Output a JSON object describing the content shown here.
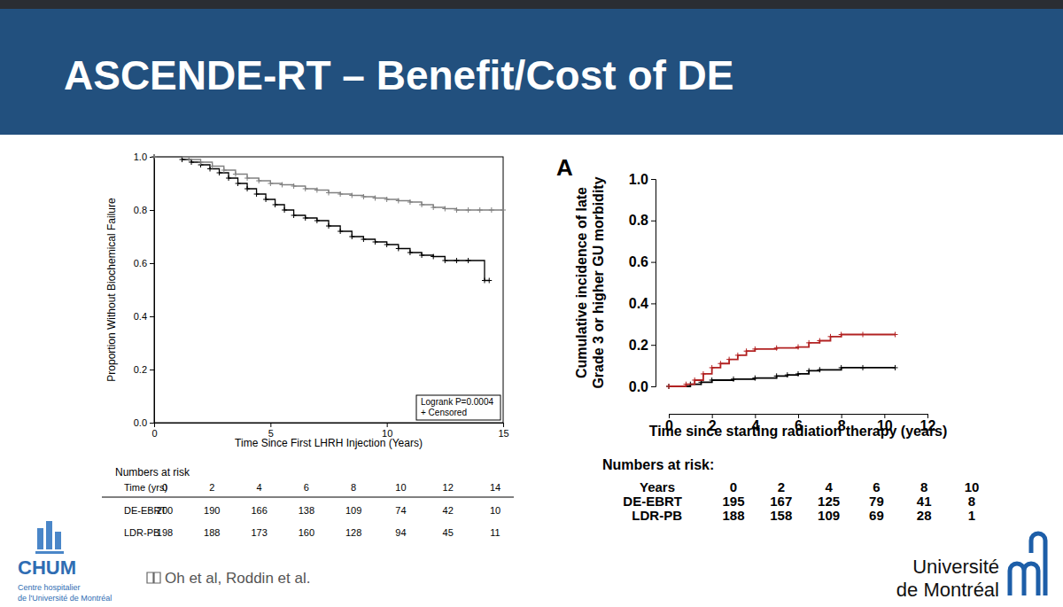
{
  "slide": {
    "title": "ASCENDE-RT – Benefit/Cost of DE",
    "citation": "Oh et al, Roddin et al.",
    "left_logo": {
      "name": "CHUM",
      "caption": [
        "Centre hospitalier",
        "de l'Université de Montréal"
      ]
    },
    "right_logo": [
      "Université",
      "de Montréal"
    ]
  },
  "chart_data": [
    {
      "type": "step",
      "xlabel": "Time Since First LHRH Injection (Years)",
      "ylabel": "Proportion Without Biochemical Failure",
      "xlim": [
        0,
        15
      ],
      "xticks": [
        0,
        5,
        10,
        15
      ],
      "ylim": [
        0,
        1
      ],
      "yticks": [
        {
          "value": 0,
          "label": "0.0"
        },
        {
          "value": 0.2,
          "label": "0.2"
        },
        {
          "value": 0.4,
          "label": "0.4"
        },
        {
          "value": 0.6,
          "label": "0.6"
        },
        {
          "value": 0.8,
          "label": "0.8"
        },
        {
          "value": 1,
          "label": "1.0"
        }
      ],
      "annotations": [
        "Logrank P=0.0004",
        "+ Censored"
      ],
      "at_risk_title": "Numbers at risk",
      "at_risk_header": "Time (yrs)",
      "at_risk_times": [
        0,
        2,
        4,
        6,
        8,
        10,
        12,
        14
      ],
      "series": [
        {
          "name": "DE-EBRT",
          "color": "#000000",
          "line_style": "solid",
          "marker": "plus",
          "x": [
            0,
            1.2,
            1.6,
            2,
            2.4,
            2.8,
            3.2,
            3.6,
            4,
            4.4,
            4.8,
            5.2,
            5.6,
            6,
            6.5,
            7,
            7.5,
            8,
            8.5,
            9,
            9.5,
            10,
            10.5,
            11,
            11.5,
            12,
            12.5,
            13,
            13.5,
            14.2,
            14.4
          ],
          "values": [
            1,
            0.99,
            0.98,
            0.97,
            0.955,
            0.94,
            0.92,
            0.9,
            0.88,
            0.86,
            0.84,
            0.82,
            0.8,
            0.78,
            0.77,
            0.76,
            0.74,
            0.72,
            0.7,
            0.69,
            0.68,
            0.67,
            0.655,
            0.64,
            0.63,
            0.625,
            0.61,
            0.61,
            0.61,
            0.535,
            0.535
          ],
          "at_risk": [
            200,
            190,
            166,
            138,
            109,
            74,
            42,
            10
          ]
        },
        {
          "name": "LDR-PB",
          "color": "#808080",
          "line_style": "solid",
          "marker": "plus",
          "x": [
            0,
            1.5,
            2,
            2.5,
            3,
            3.5,
            4,
            4.5,
            5,
            5.5,
            6,
            6.5,
            7,
            7.5,
            8,
            8.5,
            9,
            9.5,
            10,
            10.5,
            11,
            11.5,
            12,
            12.5,
            13,
            13.5,
            14,
            14.5,
            15
          ],
          "values": [
            1,
            0.99,
            0.98,
            0.965,
            0.95,
            0.935,
            0.92,
            0.91,
            0.9,
            0.895,
            0.89,
            0.88,
            0.875,
            0.865,
            0.86,
            0.855,
            0.85,
            0.845,
            0.84,
            0.835,
            0.83,
            0.82,
            0.81,
            0.805,
            0.8,
            0.8,
            0.8,
            0.8,
            0.8
          ],
          "at_risk": [
            198,
            188,
            173,
            160,
            128,
            94,
            45,
            11
          ]
        }
      ]
    },
    {
      "type": "step",
      "title": "A",
      "xlabel": "Time since starting radiation therapy (years)",
      "ylabel": "Cumulative incidence of late\nGrade 3 or higher GU morbidity",
      "xlim": [
        0,
        12
      ],
      "xticks": [
        0,
        2,
        4,
        6,
        8,
        10,
        12
      ],
      "ylim": [
        0,
        1
      ],
      "yticks": [
        {
          "value": 0,
          "label": "0.0"
        },
        {
          "value": 0.2,
          "label": "0.2"
        },
        {
          "value": 0.4,
          "label": "0.4"
        },
        {
          "value": 0.6,
          "label": "0.6"
        },
        {
          "value": 0.8,
          "label": "0.8"
        },
        {
          "value": 1,
          "label": "1.0"
        }
      ],
      "at_risk_title": "Numbers at risk:",
      "at_risk_header": "Years",
      "at_risk_times": [
        0,
        2,
        4,
        6,
        8,
        10
      ],
      "series": [
        {
          "name": "DE-EBRT",
          "color": "#000000",
          "line_style": "solid",
          "marker": "plus",
          "x": [
            0,
            1,
            1.5,
            2,
            3,
            4,
            5,
            5.5,
            6,
            6.5,
            7,
            8,
            9,
            10.5
          ],
          "values": [
            0,
            0.01,
            0.02,
            0.03,
            0.035,
            0.04,
            0.05,
            0.055,
            0.06,
            0.075,
            0.08,
            0.09,
            0.09,
            0.09
          ],
          "at_risk": [
            195,
            167,
            125,
            79,
            41,
            8
          ]
        },
        {
          "name": "LDR-PB",
          "color": "#b22222",
          "line_style": "solid",
          "marker": "plus",
          "x": [
            0,
            0.8,
            1.2,
            1.6,
            2,
            2.4,
            2.8,
            3.2,
            3.6,
            4,
            5,
            6,
            6.5,
            7,
            7.5,
            8,
            9,
            10.5
          ],
          "values": [
            0,
            0.01,
            0.03,
            0.06,
            0.09,
            0.11,
            0.13,
            0.15,
            0.17,
            0.18,
            0.185,
            0.19,
            0.21,
            0.22,
            0.24,
            0.25,
            0.25,
            0.25
          ],
          "at_risk": [
            188,
            158,
            109,
            69,
            28,
            1
          ]
        }
      ]
    }
  ]
}
